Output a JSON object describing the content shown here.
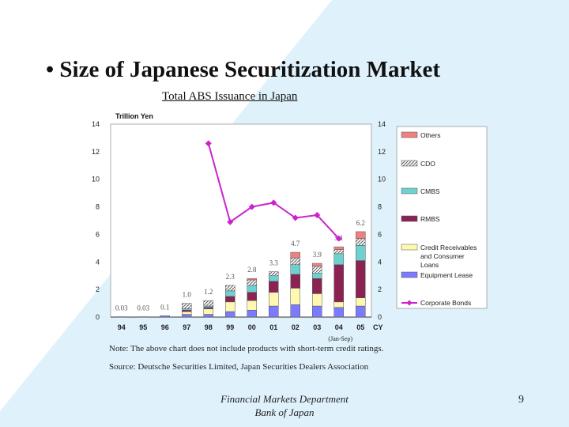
{
  "slide": {
    "title": "• Size of Japanese Securitization Market",
    "note": "Note: The above chart does not include products with short-term credit ratings.",
    "source": "Source: Deutsche Securities Limited, Japan Securities Dealers Association",
    "footer_line1": "Financial Markets Department",
    "footer_line2": "Bank of Japan",
    "page_number": "9"
  },
  "colors": {
    "others": "#f08080",
    "cdo": "#d8d8d8",
    "cmbs": "#6fd0d0",
    "rmbs": "#8b2252",
    "credit": "#fff8b0",
    "equipment": "#7b7bff",
    "corporate": "#cc22cc",
    "background_accent": "#dff2fc"
  },
  "chart_data": {
    "type": "bar",
    "title": "Total ABS Issuance in Japan",
    "ylabel": "Trillion Yen",
    "ylim": [
      0,
      14
    ],
    "yticks": [
      "0",
      "2",
      "4",
      "6",
      "8",
      "10",
      "12",
      "14"
    ],
    "categories": [
      "94",
      "95",
      "96",
      "97",
      "98",
      "99",
      "00",
      "01",
      "02",
      "03",
      "04",
      "05"
    ],
    "xaxis_suffix": "CY",
    "x_annotation": "(Jan-Sep)",
    "totals_labels": [
      "0.03",
      "0.03",
      "0.1",
      "1.0",
      "1.2",
      "2.3",
      "2.8",
      "3.3",
      "4.7",
      "3.9",
      "5.1",
      "6.2"
    ],
    "totals": [
      0.03,
      0.03,
      0.1,
      1.0,
      1.2,
      2.3,
      2.8,
      3.3,
      4.7,
      3.9,
      5.1,
      6.2
    ],
    "series": [
      {
        "name": "Equipment Lease",
        "key": "equipment",
        "values": [
          0.03,
          0.03,
          0.1,
          0.2,
          0.2,
          0.4,
          0.5,
          0.8,
          0.9,
          0.8,
          0.7,
          0.8
        ]
      },
      {
        "name": "Credit Receivables and Consumer Loans",
        "key": "credit",
        "values": [
          0,
          0,
          0,
          0.2,
          0.4,
          0.7,
          0.7,
          1.0,
          1.2,
          0.9,
          0.4,
          0.6
        ]
      },
      {
        "name": "RMBS",
        "key": "rmbs",
        "values": [
          0,
          0,
          0,
          0.1,
          0.1,
          0.4,
          0.6,
          0.8,
          1.0,
          1.1,
          2.7,
          2.7
        ]
      },
      {
        "name": "CMBS",
        "key": "cmbs",
        "values": [
          0,
          0,
          0,
          0.1,
          0.1,
          0.4,
          0.5,
          0.4,
          0.7,
          0.4,
          0.8,
          1.1
        ]
      },
      {
        "name": "CDO",
        "key": "cdo",
        "values": [
          0,
          0,
          0,
          0.4,
          0.4,
          0.4,
          0.4,
          0.3,
          0.5,
          0.5,
          0.3,
          0.5
        ]
      },
      {
        "name": "Others",
        "key": "others",
        "values": [
          0,
          0,
          0,
          0,
          0,
          0,
          0.1,
          0,
          0.4,
          0.2,
          0.2,
          0.5
        ]
      }
    ],
    "line_series": {
      "name": "Corporate Bonds",
      "key": "corporate",
      "x": [
        "98",
        "99",
        "00",
        "01",
        "02",
        "03",
        "04"
      ],
      "values": [
        12.6,
        6.9,
        8.0,
        8.3,
        7.2,
        7.4,
        5.7
      ]
    },
    "legend_order": [
      "Others",
      "CDO",
      "CMBS",
      "RMBS",
      "Credit Receivables and Consumer Loans",
      "Equipment Lease",
      "Corporate Bonds"
    ],
    "legend_position": "right",
    "grid": false
  }
}
